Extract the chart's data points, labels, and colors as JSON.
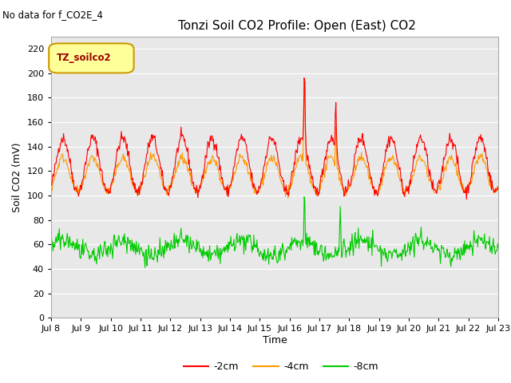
{
  "title": "Tonzi Soil CO2 Profile: Open (East) CO2",
  "no_data_text": "No data for f_CO2E_4",
  "xlabel": "Time",
  "ylabel": "Soil CO2 (mV)",
  "legend_label": "TZ_soilco2",
  "ylim": [
    0,
    230
  ],
  "yticks": [
    0,
    20,
    40,
    60,
    80,
    100,
    120,
    140,
    160,
    180,
    200,
    220
  ],
  "xtick_labels": [
    "Jul 8",
    "Jul 9",
    "Jul 10",
    "Jul 11",
    "Jul 12",
    "Jul 13",
    "Jul 14",
    "Jul 15",
    "Jul 16",
    "Jul 17",
    "Jul 18",
    "Jul 19",
    "Jul 20",
    "Jul 21",
    "Jul 22",
    "Jul 23"
  ],
  "series_colors": {
    "minus2cm": "#ff0000",
    "minus4cm": "#ff9900",
    "minus8cm": "#00cc00"
  },
  "bg_color": "#e8e8e8",
  "grid_color": "#ffffff",
  "fig_bg": "#ffffff",
  "n_days": 15,
  "ppd": 48,
  "seed": 42,
  "line_width": 0.8
}
